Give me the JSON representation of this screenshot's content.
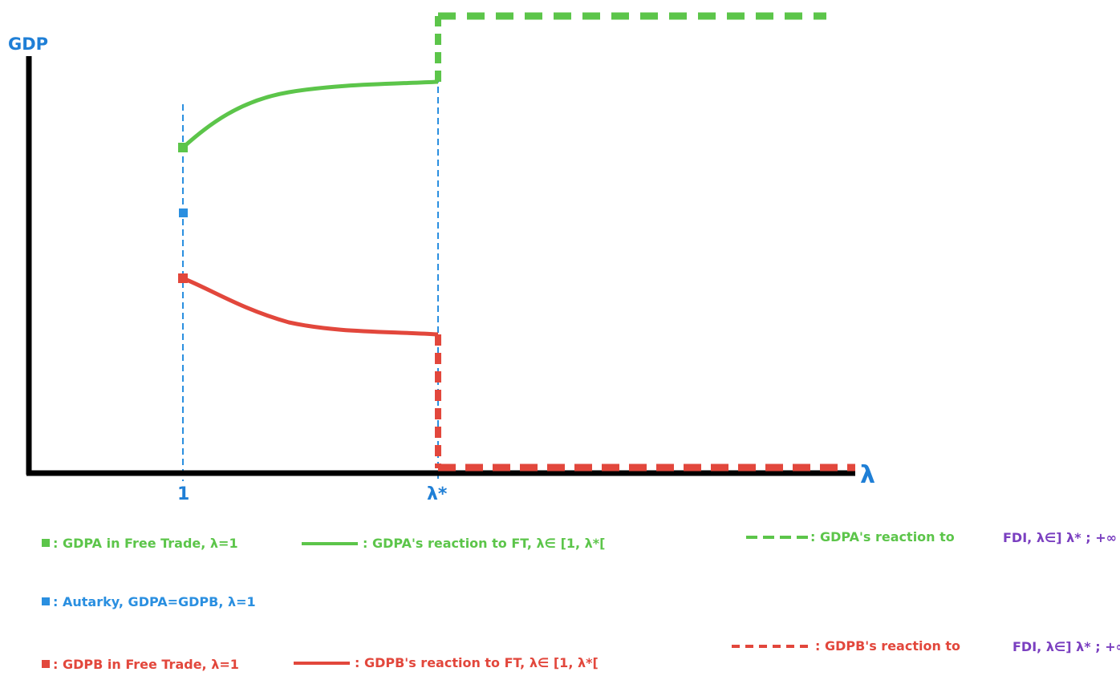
{
  "axes": {
    "y_label": "GDP",
    "x_label": "λ",
    "x_ticks": [
      "1",
      "λ*"
    ]
  },
  "colors": {
    "green": "#5cc54a",
    "blue": "#2a8fe0",
    "red": "#e2473c",
    "axis": "#000000",
    "label": "#1f7fd6"
  },
  "legend": {
    "green_square": ": GDPA in Free Trade, λ=1",
    "green_solid": ": GDPA's reaction to FT, λ∈ [1, λ*[",
    "green_dashed_a": ": GDPA's reaction to",
    "green_dashed_b": "FDI, λ∈] λ* ; +∞",
    "blue_square": ": Autarky, GDPA=GDPB, λ=1",
    "red_square": ": GDPB in Free Trade, λ=1",
    "red_solid": ": GDPB's reaction to FT, λ∈ [1, λ*[",
    "red_dashed_a": ": GDPB's reaction to",
    "red_dashed_b": "FDI, λ∈] λ* ; +∞"
  }
}
